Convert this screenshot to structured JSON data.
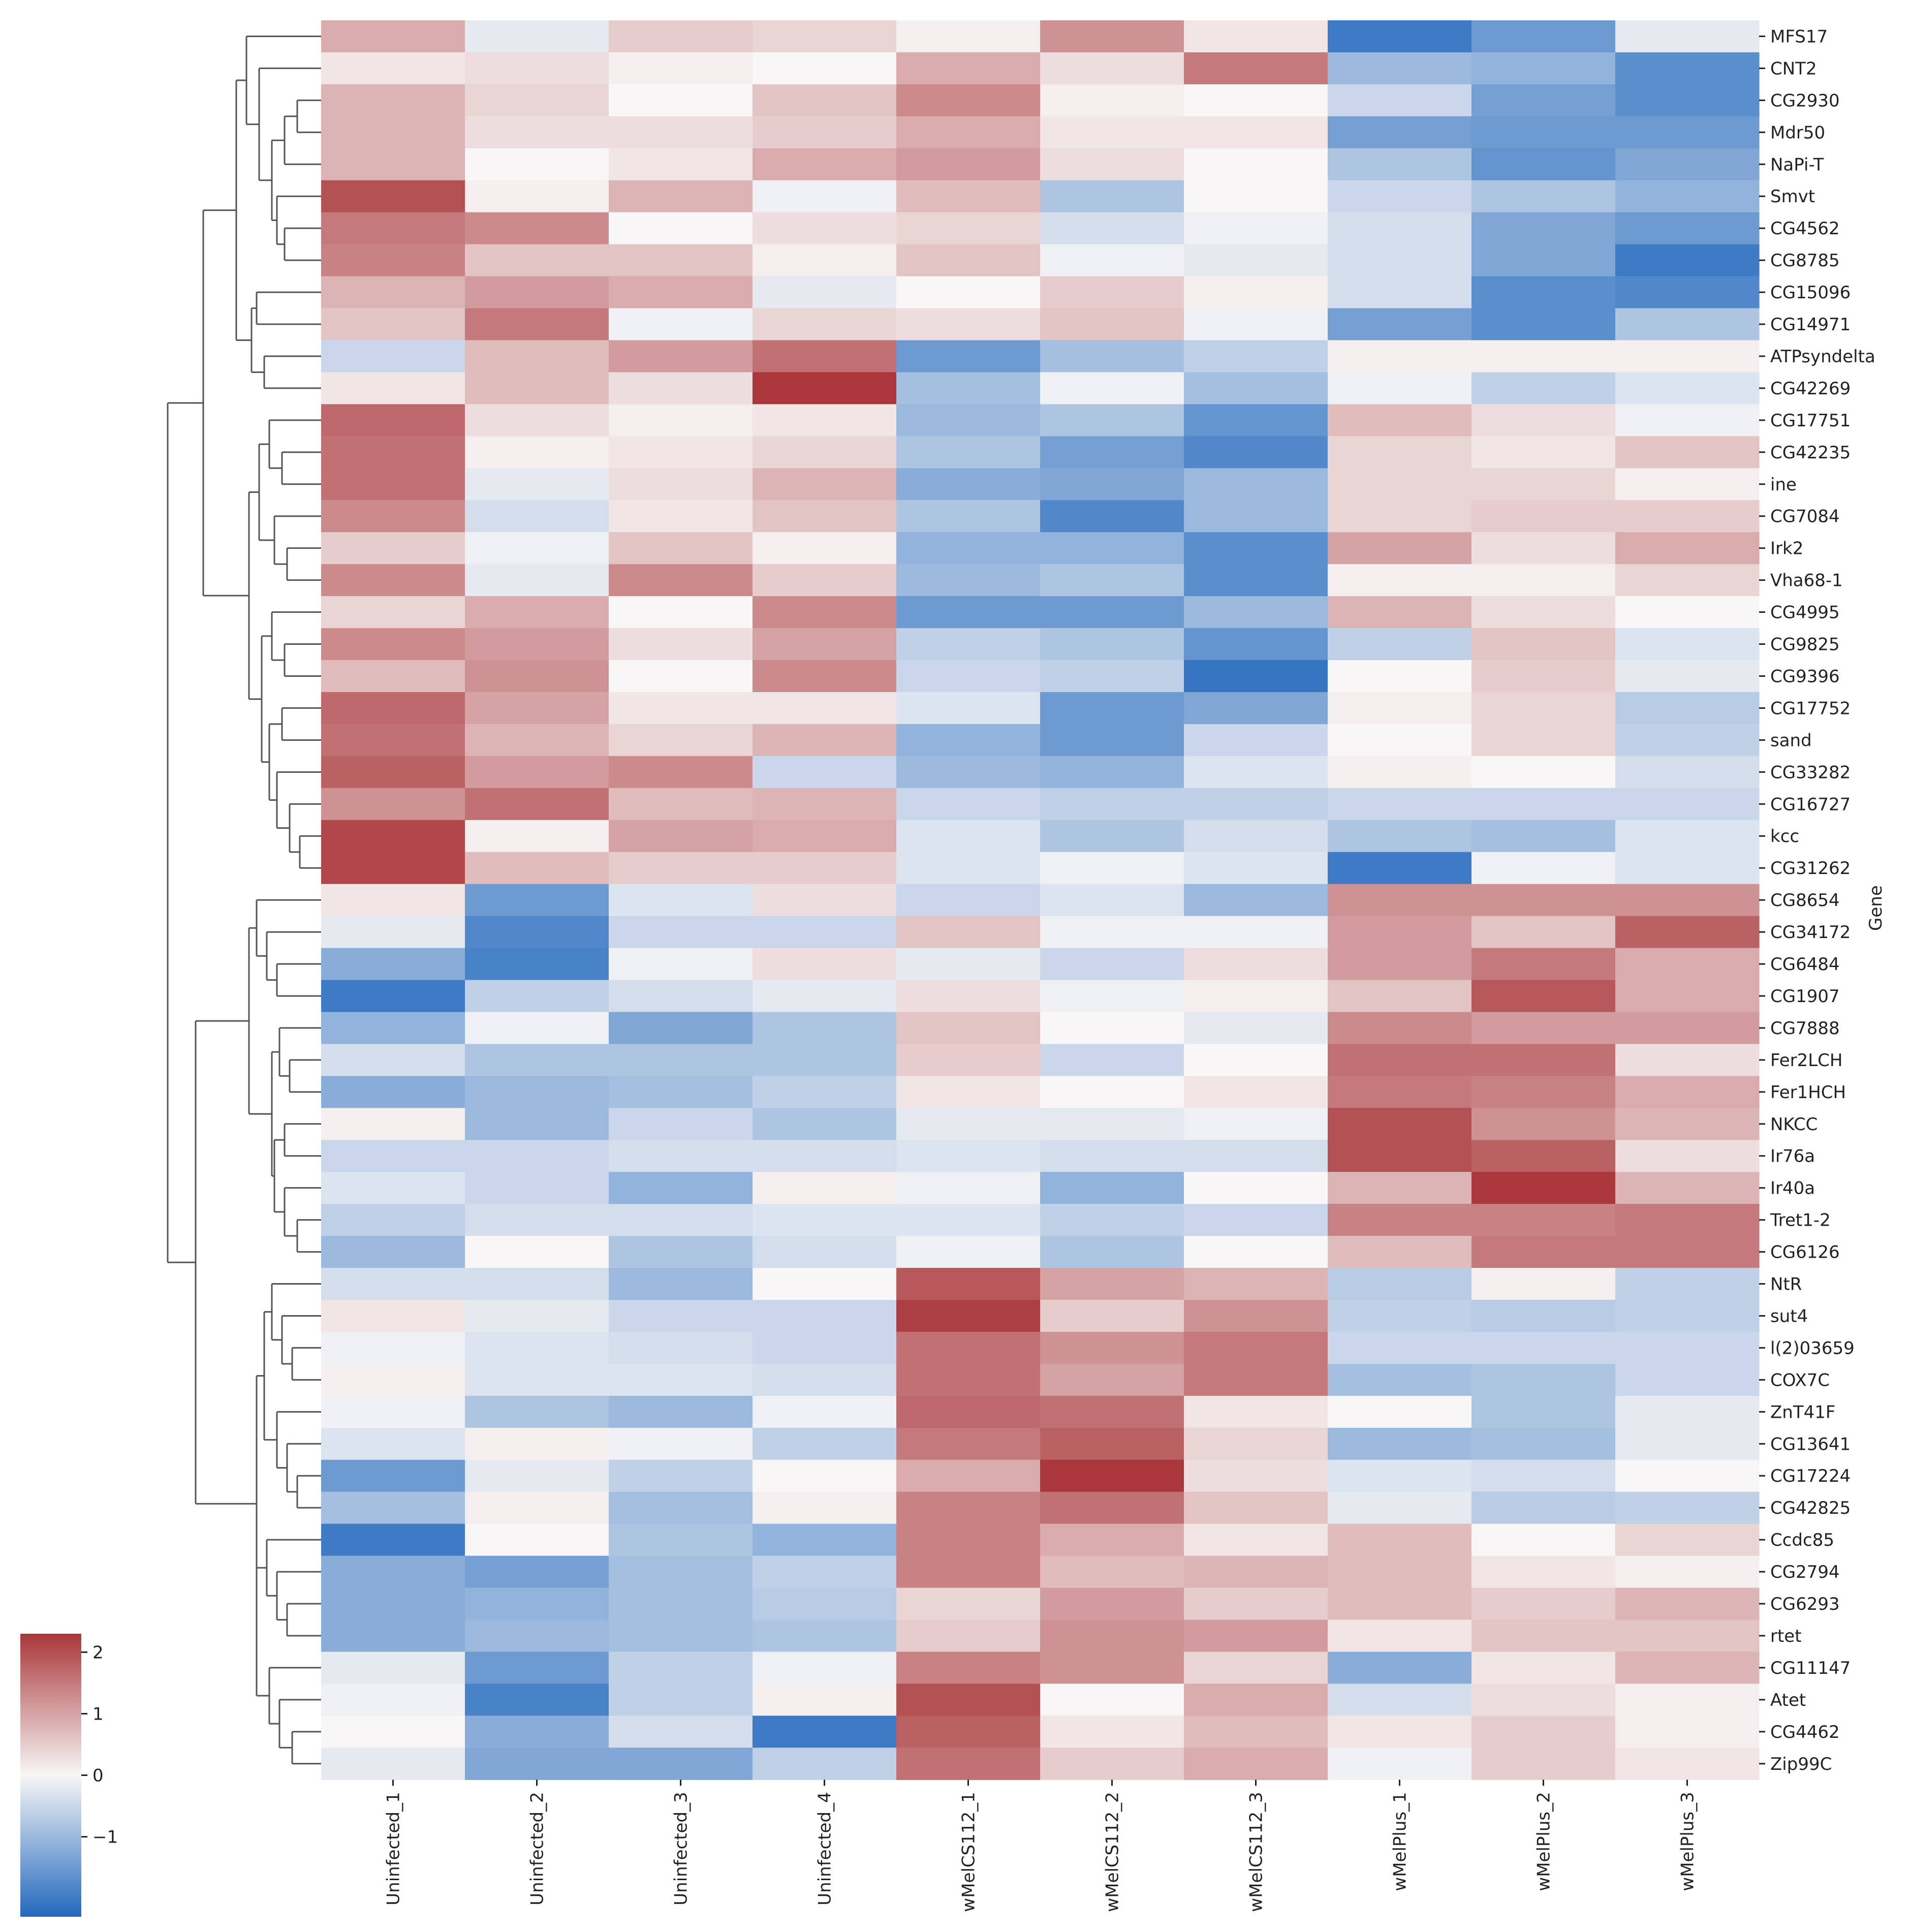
{
  "chart_data": {
    "type": "heatmap",
    "title": "",
    "xlabel": "",
    "ylabel": "Gene",
    "columns": [
      "Uninfected_1",
      "Uninfected_2",
      "Uninfected_3",
      "Uninfected_4",
      "wMelCS112_1",
      "wMelCS112_2",
      "wMelCS112_3",
      "wMelPlus_1",
      "wMelPlus_2",
      "wMelPlus_3"
    ],
    "rows": [
      "MFS17",
      "CNT2",
      "CG2930",
      "Mdr50",
      "NaPi-T",
      "Smvt",
      "CG4562",
      "CG8785",
      "CG15096",
      "CG14971",
      "ATPsyndelta",
      "CG42269",
      "CG17751",
      "CG42235",
      "ine",
      "CG7084",
      "Irk2",
      "Vha68-1",
      "CG4995",
      "CG9825",
      "CG9396",
      "CG17752",
      "sand",
      "CG33282",
      "CG16727",
      "kcc",
      "CG31262",
      "CG8654",
      "CG34172",
      "CG6484",
      "CG1907",
      "CG7888",
      "Fer2LCH",
      "Fer1HCH",
      "NKCC",
      "Ir76a",
      "Ir40a",
      "Tret1-2",
      "CG6126",
      "NtR",
      "sut4",
      "l(2)03659",
      "COX7C",
      "ZnT41F",
      "CG13641",
      "CG17224",
      "CG42825",
      "Ccdc85",
      "CG2794",
      "CG6293",
      "rtet",
      "CG11147",
      "Atet",
      "CG4462",
      "Zip99C"
    ],
    "values": [
      [
        0.9,
        -0.2,
        0.5,
        0.4,
        0.1,
        1.2,
        0.2,
        -2.0,
        -1.5,
        -0.2
      ],
      [
        0.2,
        0.3,
        0.1,
        0.0,
        0.9,
        0.3,
        1.5,
        -1.0,
        -1.1,
        -1.7
      ],
      [
        0.8,
        0.4,
        0.0,
        0.6,
        1.3,
        0.1,
        0.0,
        -0.5,
        -1.4,
        -1.7
      ],
      [
        0.8,
        0.3,
        0.3,
        0.5,
        0.9,
        0.2,
        0.2,
        -1.4,
        -1.5,
        -1.5
      ],
      [
        0.8,
        0.0,
        0.2,
        0.9,
        1.1,
        0.3,
        0.0,
        -0.8,
        -1.6,
        -1.3
      ],
      [
        2.0,
        0.1,
        0.8,
        -0.1,
        0.7,
        -0.8,
        0.0,
        -0.5,
        -0.8,
        -1.1
      ],
      [
        1.5,
        1.3,
        0.0,
        0.3,
        0.4,
        -0.4,
        -0.1,
        -0.4,
        -1.3,
        -1.5
      ],
      [
        1.4,
        0.6,
        0.6,
        0.1,
        0.6,
        -0.1,
        -0.2,
        -0.4,
        -1.3,
        -2.0
      ],
      [
        0.8,
        1.1,
        0.9,
        -0.2,
        0.0,
        0.5,
        0.1,
        -0.4,
        -1.7,
        -1.8
      ],
      [
        0.6,
        1.5,
        -0.1,
        0.4,
        0.3,
        0.6,
        -0.1,
        -1.4,
        -1.7,
        -0.8
      ],
      [
        -0.5,
        0.7,
        1.1,
        1.6,
        -1.5,
        -0.9,
        -0.6,
        0.1,
        0.1,
        0.1
      ],
      [
        0.2,
        0.7,
        0.3,
        2.3,
        -0.9,
        -0.1,
        -0.9,
        -0.1,
        -0.6,
        -0.3
      ],
      [
        1.7,
        0.3,
        0.1,
        0.2,
        -1.0,
        -0.8,
        -1.6,
        0.7,
        0.3,
        -0.1
      ],
      [
        1.6,
        0.1,
        0.2,
        0.4,
        -0.8,
        -1.4,
        -1.8,
        0.4,
        0.2,
        0.6
      ],
      [
        1.6,
        -0.2,
        0.3,
        0.8,
        -1.2,
        -1.3,
        -1.0,
        0.4,
        0.4,
        0.1
      ],
      [
        1.3,
        -0.4,
        0.2,
        0.6,
        -0.8,
        -1.8,
        -1.0,
        0.4,
        0.5,
        0.5
      ],
      [
        0.5,
        -0.1,
        0.6,
        0.1,
        -1.1,
        -1.1,
        -1.7,
        1.0,
        0.3,
        0.9
      ],
      [
        1.3,
        -0.2,
        1.3,
        0.5,
        -1.0,
        -0.8,
        -1.7,
        0.1,
        0.1,
        0.4
      ],
      [
        0.4,
        0.9,
        0.0,
        1.3,
        -1.5,
        -1.5,
        -1.0,
        0.8,
        0.3,
        0.0
      ],
      [
        1.3,
        1.1,
        0.3,
        1.0,
        -0.6,
        -0.8,
        -1.6,
        -0.6,
        0.6,
        -0.3
      ],
      [
        0.7,
        1.2,
        0.0,
        1.3,
        -0.5,
        -0.6,
        -2.1,
        0.0,
        0.5,
        -0.2
      ],
      [
        1.7,
        1.0,
        0.2,
        0.2,
        -0.3,
        -1.5,
        -1.3,
        0.1,
        0.4,
        -0.7
      ],
      [
        1.6,
        0.8,
        0.4,
        0.8,
        -1.1,
        -1.5,
        -0.5,
        0.0,
        0.4,
        -0.6
      ],
      [
        1.8,
        1.1,
        1.3,
        -0.5,
        -1.0,
        -1.1,
        -0.3,
        0.1,
        0.0,
        -0.4
      ],
      [
        1.2,
        1.6,
        0.7,
        0.8,
        -0.5,
        -0.6,
        -0.6,
        -0.5,
        -0.5,
        -0.5
      ],
      [
        2.1,
        0.1,
        1.0,
        0.9,
        -0.3,
        -0.8,
        -0.4,
        -0.8,
        -0.9,
        -0.3
      ],
      [
        2.1,
        0.7,
        0.5,
        0.5,
        -0.3,
        -0.1,
        -0.3,
        -2.0,
        -0.1,
        -0.3
      ],
      [
        0.2,
        -1.5,
        -0.3,
        0.3,
        -0.5,
        -0.3,
        -1.0,
        1.2,
        1.2,
        1.2
      ],
      [
        -0.2,
        -1.8,
        -0.5,
        -0.5,
        0.6,
        -0.1,
        -0.1,
        1.1,
        0.6,
        1.8
      ],
      [
        -1.2,
        -1.9,
        -0.1,
        0.3,
        -0.2,
        -0.5,
        0.3,
        1.1,
        1.5,
        0.9
      ],
      [
        -2.0,
        -0.6,
        -0.4,
        -0.2,
        0.3,
        -0.1,
        0.1,
        0.6,
        1.9,
        0.9
      ],
      [
        -1.1,
        -0.1,
        -1.3,
        -0.8,
        0.6,
        0.0,
        -0.2,
        1.3,
        1.1,
        1.1
      ],
      [
        -0.4,
        -0.8,
        -0.8,
        -0.8,
        0.5,
        -0.5,
        0.0,
        1.6,
        1.6,
        0.3
      ],
      [
        -1.2,
        -1.0,
        -0.9,
        -0.6,
        0.2,
        0.0,
        0.2,
        1.5,
        1.4,
        0.9
      ],
      [
        0.1,
        -1.0,
        -0.5,
        -0.8,
        -0.2,
        -0.2,
        -0.1,
        2.0,
        1.2,
        0.8
      ],
      [
        -0.5,
        -0.5,
        -0.4,
        -0.4,
        -0.3,
        -0.4,
        -0.4,
        2.0,
        1.8,
        0.3
      ],
      [
        -0.3,
        -0.5,
        -1.1,
        0.1,
        -0.1,
        -1.1,
        0.0,
        0.8,
        2.3,
        0.8
      ],
      [
        -0.6,
        -0.4,
        -0.4,
        -0.3,
        -0.3,
        -0.6,
        -0.5,
        1.4,
        1.4,
        1.5
      ],
      [
        -1.0,
        0.0,
        -0.8,
        -0.4,
        -0.1,
        -0.8,
        0.0,
        0.7,
        1.5,
        1.5
      ],
      [
        -0.4,
        -0.4,
        -1.0,
        0.0,
        1.9,
        1.0,
        0.8,
        -0.7,
        0.1,
        -0.6
      ],
      [
        0.2,
        -0.2,
        -0.5,
        -0.5,
        2.2,
        0.5,
        1.2,
        -0.6,
        -0.7,
        -0.6
      ],
      [
        -0.1,
        -0.3,
        -0.4,
        -0.5,
        1.6,
        1.2,
        1.5,
        -0.5,
        -0.5,
        -0.5
      ],
      [
        0.1,
        -0.3,
        -0.3,
        -0.4,
        1.6,
        1.0,
        1.5,
        -0.9,
        -0.8,
        -0.5
      ],
      [
        -0.1,
        -0.8,
        -1.0,
        -0.1,
        1.7,
        1.6,
        0.2,
        0.0,
        -0.8,
        -0.2
      ],
      [
        -0.3,
        0.1,
        -0.1,
        -0.6,
        1.5,
        1.8,
        0.4,
        -1.0,
        -0.9,
        -0.2
      ],
      [
        -1.5,
        -0.2,
        -0.6,
        0.0,
        0.9,
        2.3,
        0.3,
        -0.3,
        -0.4,
        0.0
      ],
      [
        -0.9,
        0.1,
        -0.9,
        0.1,
        1.4,
        1.6,
        0.6,
        -0.2,
        -0.7,
        -0.6
      ],
      [
        -2.0,
        0.0,
        -0.8,
        -1.1,
        1.4,
        0.9,
        0.2,
        0.7,
        0.0,
        0.4
      ],
      [
        -1.2,
        -1.4,
        -0.9,
        -0.6,
        1.4,
        0.7,
        0.8,
        0.7,
        0.2,
        0.1
      ],
      [
        -1.2,
        -1.1,
        -0.9,
        -0.7,
        0.4,
        1.1,
        0.5,
        0.7,
        0.5,
        0.8
      ],
      [
        -1.2,
        -1.0,
        -0.9,
        -0.8,
        0.5,
        1.2,
        1.1,
        0.2,
        0.6,
        0.6
      ],
      [
        -0.2,
        -1.5,
        -0.6,
        -0.1,
        1.4,
        1.2,
        0.4,
        -1.2,
        0.2,
        0.8
      ],
      [
        -0.1,
        -1.9,
        -0.6,
        0.1,
        2.0,
        0.0,
        0.9,
        -0.4,
        0.3,
        0.1
      ],
      [
        0.0,
        -1.2,
        -0.4,
        -2.0,
        1.8,
        0.2,
        0.7,
        0.2,
        0.5,
        0.1
      ],
      [
        -0.2,
        -1.3,
        -1.3,
        -0.6,
        1.6,
        0.5,
        0.9,
        -0.1,
        0.5,
        0.2
      ]
    ],
    "colormap": {
      "name": "vlag",
      "vmin": -2.3,
      "vmax": 2.3,
      "low": "#2369bd",
      "mid": "#f8f6f6",
      "high": "#a9373b"
    },
    "colorbar": {
      "ticks": [
        2,
        1,
        0,
        -1
      ],
      "tick_labels": [
        "2",
        "1",
        "0",
        "−1"
      ]
    },
    "row_dendrogram": true,
    "grid": false
  }
}
